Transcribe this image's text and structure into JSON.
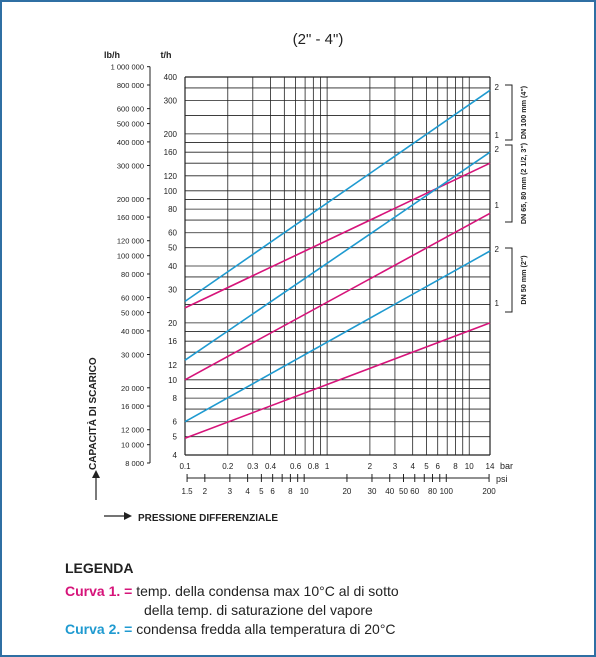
{
  "chart_data": {
    "type": "line",
    "title": "(2\" - 4\")",
    "xlabel": "PRESSIONE DIFFERENZIALE",
    "ylabel": "CAPACITÀ DI SCARICO",
    "x_scale": "log",
    "y_scale": "log",
    "xlim": [
      0.1,
      14
    ],
    "ylim": [
      4,
      400
    ],
    "grid": true,
    "x_unit_primary": "bar",
    "x_unit_secondary": "psi",
    "y_unit_left": "lb/h",
    "y_unit_right": "t/h",
    "x_ticks_bar": [
      "0.1",
      "0.2",
      "0.3",
      "0.4",
      "0.6",
      "0.8",
      "1",
      "2",
      "3",
      "4",
      "5",
      "6",
      "8",
      "10",
      "14"
    ],
    "x_ticks_psi": [
      "1.5",
      "2",
      "3",
      "4",
      "5",
      "6",
      "8",
      "10",
      "20",
      "30",
      "40",
      "50",
      "60",
      "80",
      "100",
      "200"
    ],
    "y_ticks_th": [
      "4",
      "5",
      "6",
      "8",
      "10",
      "12",
      "16",
      "20",
      "30",
      "40",
      "50",
      "60",
      "80",
      "100",
      "120",
      "160",
      "200",
      "300",
      "400"
    ],
    "y_ticks_lbh": [
      "8 000",
      "10 000",
      "12 000",
      "16 000",
      "20 000",
      "30 000",
      "40 000",
      "50 000",
      "60 000",
      "80 000",
      "100 000",
      "120 000",
      "160 000",
      "200 000",
      "300 000",
      "400 000",
      "500 000",
      "600 000",
      "800 000",
      "1 000 000"
    ],
    "size_groups": [
      {
        "label": "DN 100 mm (4\")"
      },
      {
        "label": "DN 65, 80 mm (2 1/2, 3\")"
      },
      {
        "label": "DN 50 mm (2\")"
      }
    ],
    "series": [
      {
        "name": "DN 100 mm (4\") curva 2",
        "curve": "2",
        "color": "#1f9ad0",
        "x": [
          0.1,
          14
        ],
        "y": [
          26,
          340
        ]
      },
      {
        "name": "DN 100 mm (4\") curva 1",
        "curve": "1",
        "color": "#d6147a",
        "x": [
          0.1,
          14
        ],
        "y": [
          24,
          140
        ]
      },
      {
        "name": "DN 65, 80 mm curva 2",
        "curve": "2",
        "color": "#1f9ad0",
        "x": [
          0.1,
          14
        ],
        "y": [
          12.7,
          160
        ]
      },
      {
        "name": "DN 65, 80 mm curva 1",
        "curve": "1",
        "color": "#d6147a",
        "x": [
          0.1,
          14
        ],
        "y": [
          10,
          76
        ]
      },
      {
        "name": "DN 50 mm (2\") curva 2",
        "curve": "2",
        "color": "#1f9ad0",
        "x": [
          0.1,
          14
        ],
        "y": [
          6,
          48
        ]
      },
      {
        "name": "DN 50 mm (2\") curva 1",
        "curve": "1",
        "color": "#d6147a",
        "x": [
          0.1,
          14
        ],
        "y": [
          4.9,
          20
        ]
      }
    ]
  },
  "legend": {
    "title": "LEGENDA",
    "items": [
      {
        "key": "Curva 1. =",
        "color": "#d6147a",
        "lines": [
          "temp. della condensa max 10°C al di sotto",
          "della temp. di saturazione del vapore"
        ]
      },
      {
        "key": "Curva 2. =",
        "color": "#1f9ad0",
        "lines": [
          "condensa fredda alla temperatura di 20°C"
        ]
      }
    ]
  }
}
